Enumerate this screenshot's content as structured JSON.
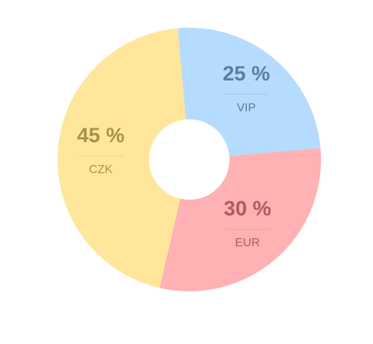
{
  "chart_data": {
    "type": "pie",
    "categories": [
      "VIP",
      "EUR",
      "CZK"
    ],
    "values": [
      25,
      30,
      45
    ],
    "value_labels": [
      "25 %",
      "30 %",
      "45 %"
    ],
    "colors": [
      "#b5dbff",
      "#ffb1b3",
      "#ffe69a"
    ],
    "label_colors": [
      "#5a7f9f",
      "#b15a5c",
      "#a8944a"
    ]
  }
}
